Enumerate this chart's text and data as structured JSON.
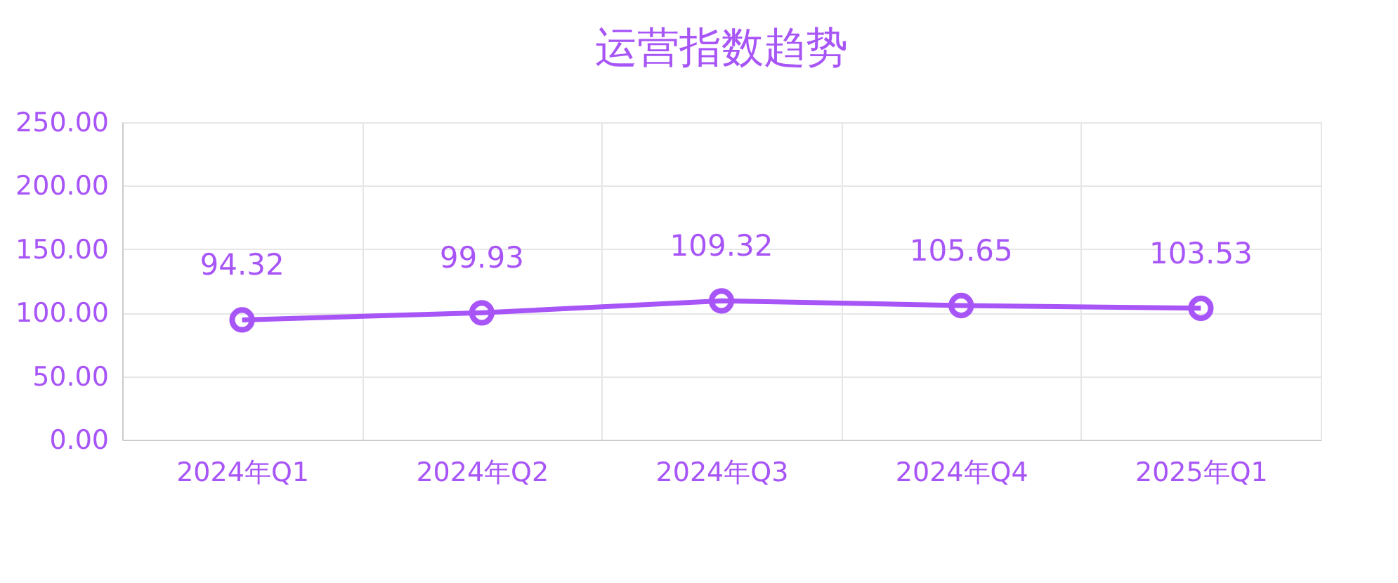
{
  "chart_data": {
    "type": "line",
    "title": "运营指数趋势",
    "categories": [
      "2024年Q1",
      "2024年Q2",
      "2024年Q3",
      "2024年Q4",
      "2025年Q1"
    ],
    "series": [
      {
        "color": "#a855f7",
        "values": [
          94.32,
          99.93,
          109.32,
          105.65,
          103.53
        ]
      }
    ],
    "ylim": [
      0,
      250
    ],
    "yticks": [
      {
        "value": 0,
        "label": "0.00"
      },
      {
        "value": 50,
        "label": "50.00"
      },
      {
        "value": 100,
        "label": "100.00"
      },
      {
        "value": 150,
        "label": "150.00"
      },
      {
        "value": 200,
        "label": "200.00"
      },
      {
        "value": 250,
        "label": "250.00"
      }
    ],
    "grid": true,
    "marker": "circle",
    "line_style": "solid",
    "data_labels": true
  }
}
